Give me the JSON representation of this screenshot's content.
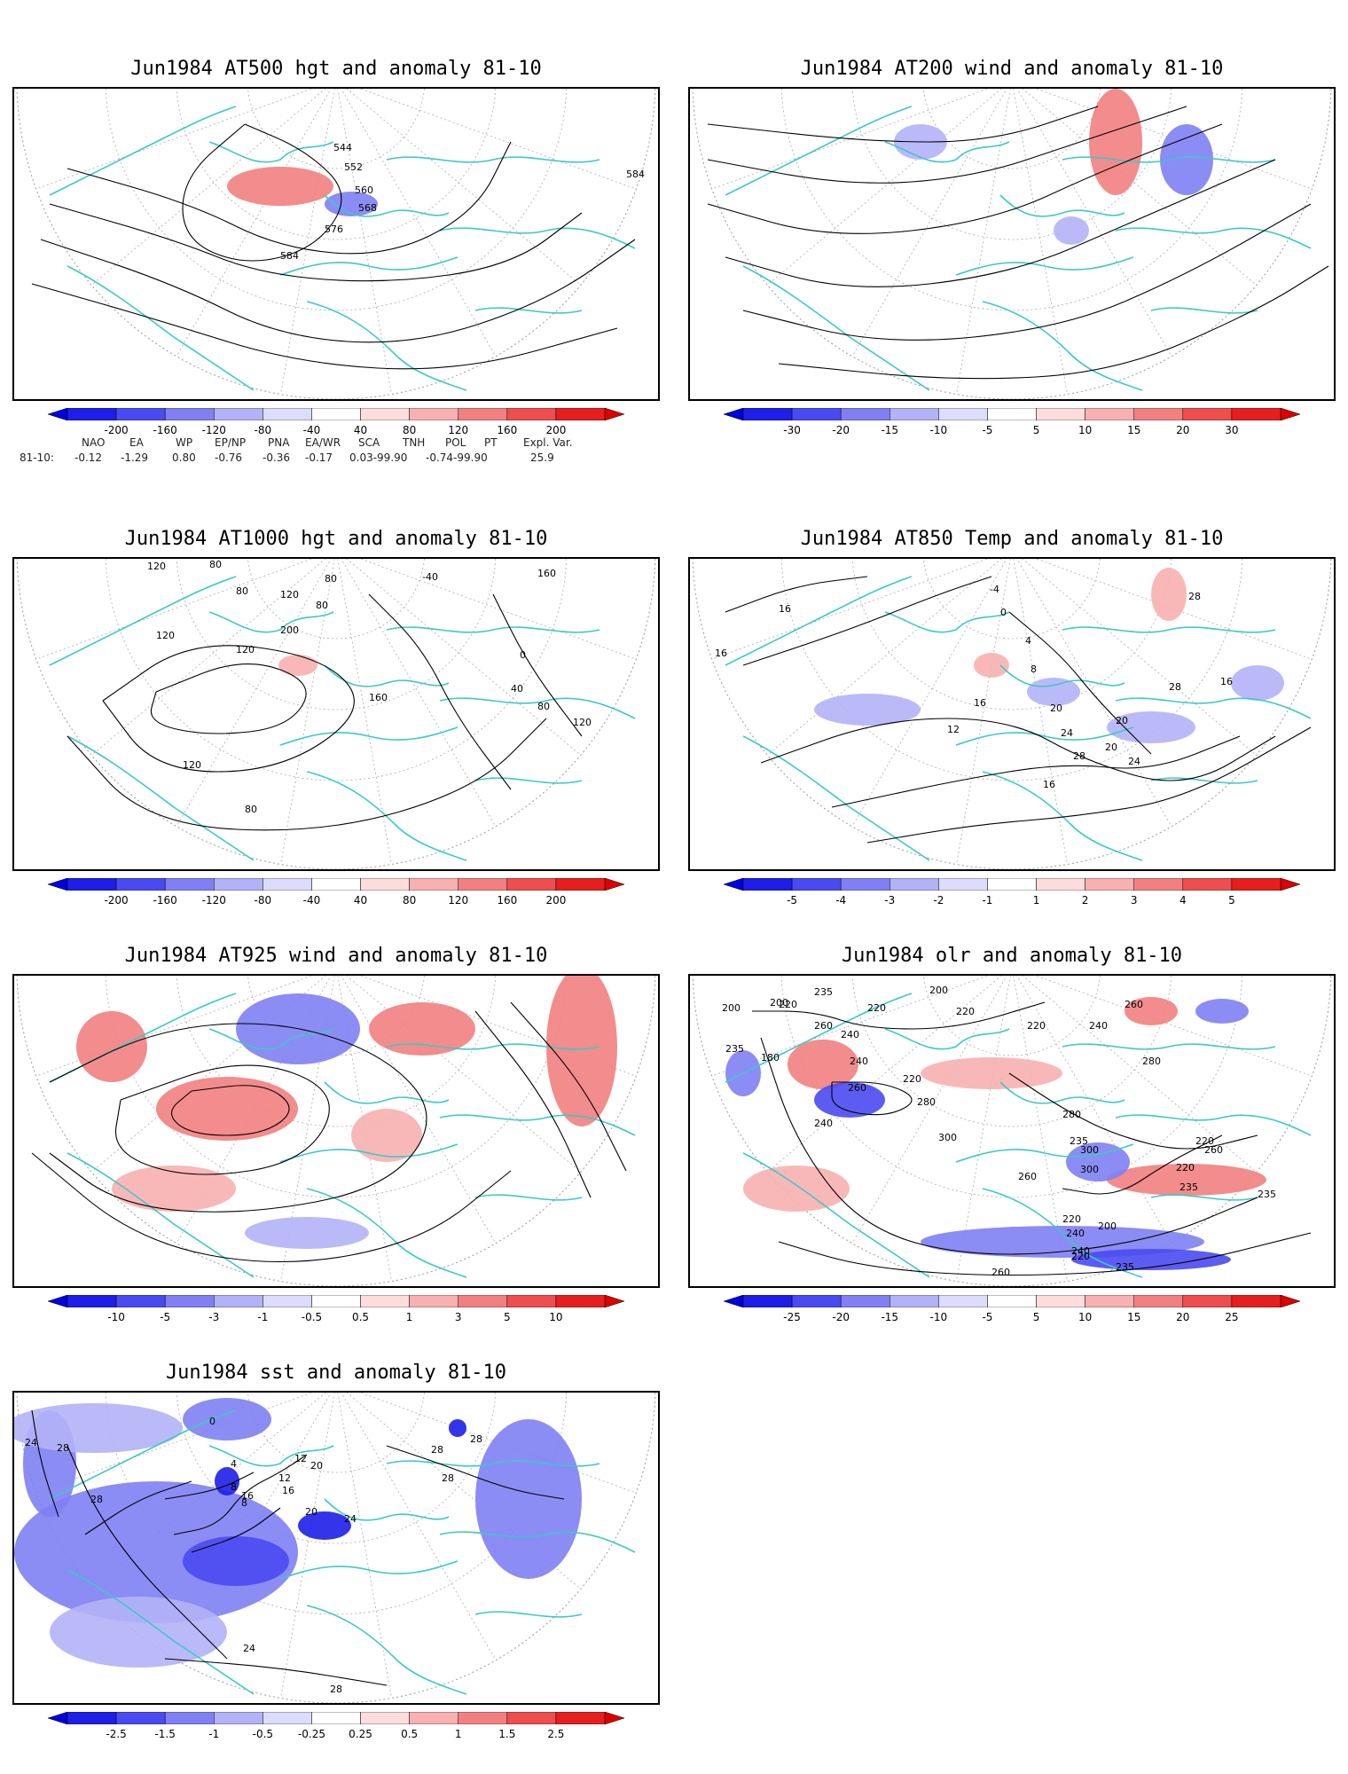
{
  "panels": [
    {
      "title": "Jun1984 AT500 hgt and anomaly 81-10",
      "contour_labels": [
        "544",
        "552",
        "560",
        "568",
        "576",
        "584",
        "584"
      ],
      "colorbar": [
        "-200",
        "-160",
        "-120",
        "-80",
        "-40",
        "40",
        "80",
        "120",
        "160",
        "200"
      ]
    },
    {
      "title": "Jun1984 AT200 wind and anomaly 81-10",
      "contour_labels": [],
      "colorbar": [
        "-30",
        "-20",
        "-15",
        "-10",
        "-5",
        "5",
        "10",
        "15",
        "20",
        "30"
      ]
    },
    {
      "title": "Jun1984 AT1000 hgt and anomaly 81-10",
      "contour_labels": [
        "120",
        "80",
        "80",
        "120",
        "80",
        "80",
        "-40",
        "160",
        "120",
        "200",
        "120",
        "160",
        "120",
        "80",
        "40",
        "80",
        "120",
        "0"
      ],
      "colorbar": [
        "-200",
        "-160",
        "-120",
        "-80",
        "-40",
        "40",
        "80",
        "120",
        "160",
        "200"
      ]
    },
    {
      "title": "Jun1984 AT850 Temp and anomaly 81-10",
      "contour_labels": [
        "16",
        "16",
        "-4",
        "0",
        "4",
        "8",
        "12",
        "16",
        "20",
        "24",
        "28",
        "20",
        "24",
        "16",
        "20",
        "28",
        "28",
        "16"
      ],
      "colorbar": [
        "-5",
        "-4",
        "-3",
        "-2",
        "-1",
        "1",
        "2",
        "3",
        "4",
        "5"
      ]
    },
    {
      "title": "Jun1984 AT925 wind and anomaly 81-10",
      "contour_labels": [],
      "colorbar": [
        "-10",
        "-5",
        "-3",
        "-1",
        "-0.5",
        "0.5",
        "1",
        "3",
        "5",
        "10"
      ]
    },
    {
      "title": "Jun1984 olr and anomaly 81-10",
      "contour_labels": [
        "200",
        "220",
        "235",
        "220",
        "200",
        "220",
        "260",
        "240",
        "200",
        "180",
        "235",
        "240",
        "260",
        "220",
        "240",
        "280",
        "300",
        "260",
        "280",
        "300",
        "300",
        "235",
        "220",
        "240",
        "260",
        "280",
        "220",
        "235",
        "220",
        "260",
        "235",
        "240",
        "220",
        "200",
        "220",
        "260",
        "240",
        "235"
      ],
      "colorbar": [
        "-25",
        "-20",
        "-15",
        "-10",
        "-5",
        "5",
        "10",
        "15",
        "20",
        "25"
      ]
    },
    {
      "title": "Jun1984 sst and anomaly 81-10",
      "contour_labels": [
        "24",
        "28",
        "28",
        "0",
        "4",
        "8",
        "12",
        "16",
        "8",
        "12",
        "16",
        "20",
        "20",
        "24",
        "28",
        "28",
        "28",
        "24",
        "28"
      ],
      "colorbar": [
        "-2.5",
        "-1.5",
        "-1",
        "-0.5",
        "-0.25",
        "0.25",
        "0.5",
        "1",
        "1.5",
        "2.5"
      ]
    }
  ],
  "teleconnections": {
    "headers": [
      "NAO",
      "EA",
      "WP",
      "EP/NP",
      "PNA",
      "EA/WR",
      "SCA",
      "TNH",
      "POL",
      "PT",
      "Expl. Var."
    ],
    "row_label": "81-10:",
    "values": [
      "-0.12",
      "-1.29",
      "0.80",
      "-0.76",
      "-0.36",
      "-0.17",
      "0.03-99.90",
      "-0.74-99.90",
      "25.9"
    ]
  },
  "colors": {
    "coast": "#3cc8c8",
    "blue_scale": [
      "#1e1ee8",
      "#4a4af2",
      "#8080f4",
      "#b2b2f8",
      "#dcdcfc"
    ],
    "red_scale": [
      "#fcdcdc",
      "#f8b0b0",
      "#f28080",
      "#ee4e4e",
      "#e61e1e"
    ]
  }
}
